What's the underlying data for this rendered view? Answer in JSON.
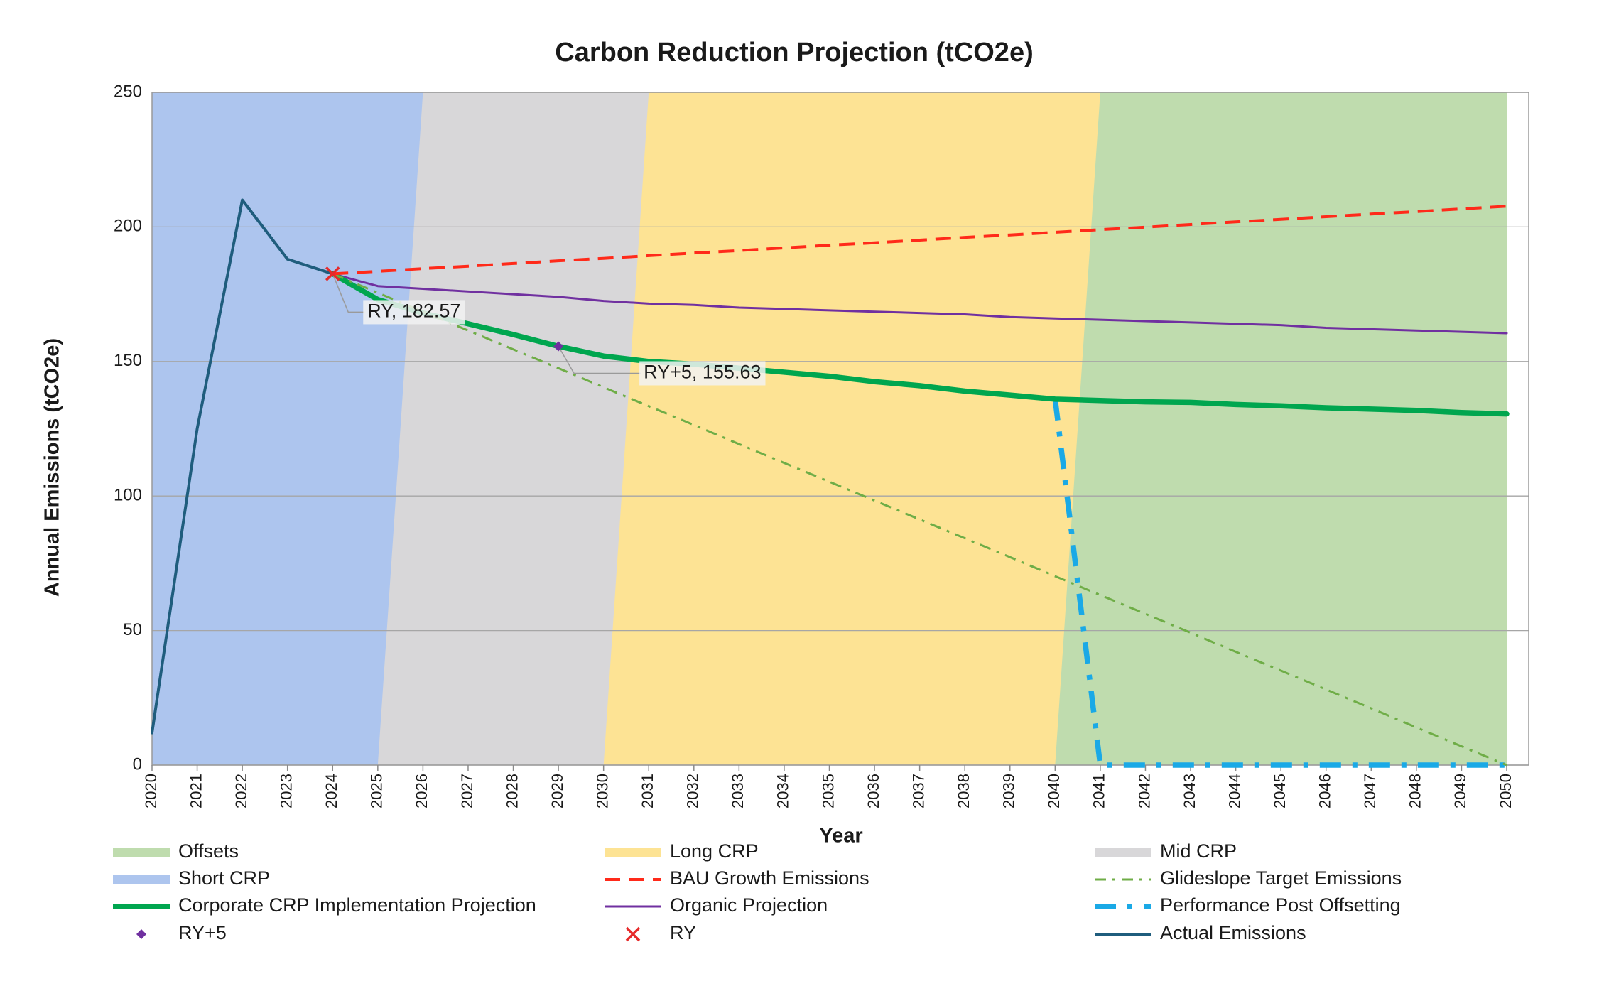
{
  "chart_data": {
    "type": "combo",
    "title": "Carbon Reduction Projection (tCO2e)",
    "x_label": "Year",
    "y_label": "Annual Emissions (tCO2e)",
    "x": [
      2020,
      2021,
      2022,
      2023,
      2024,
      2025,
      2026,
      2027,
      2028,
      2029,
      2030,
      2031,
      2032,
      2033,
      2034,
      2035,
      2036,
      2037,
      2038,
      2039,
      2040,
      2041,
      2042,
      2043,
      2044,
      2045,
      2046,
      2047,
      2048,
      2049,
      2050
    ],
    "xlim": [
      2020,
      2050
    ],
    "xticks": [
      2020,
      2021,
      2022,
      2023,
      2024,
      2025,
      2026,
      2027,
      2028,
      2029,
      2030,
      2031,
      2032,
      2033,
      2034,
      2035,
      2036,
      2037,
      2038,
      2039,
      2040,
      2041,
      2042,
      2043,
      2044,
      2045,
      2046,
      2047,
      2048,
      2049,
      2050
    ],
    "ylim": [
      0,
      250
    ],
    "yticks": [
      0,
      50,
      100,
      150,
      200,
      250
    ],
    "grid": true,
    "legend": "bottom",
    "series": [
      {
        "name": "Offsets",
        "type": "area",
        "color": "#bfdcae",
        "values": [
          0,
          0,
          0,
          0,
          0,
          0,
          0,
          0,
          0,
          0,
          0,
          0,
          0,
          0,
          0,
          0,
          0,
          0,
          0,
          0,
          0,
          250,
          250,
          250,
          250,
          250,
          250,
          250,
          250,
          250,
          250
        ]
      },
      {
        "name": "Long CRP",
        "type": "area",
        "color": "#fde394",
        "values": [
          0,
          0,
          0,
          0,
          0,
          0,
          0,
          0,
          0,
          0,
          0,
          250,
          250,
          250,
          250,
          250,
          250,
          250,
          250,
          250,
          250,
          250,
          0,
          0,
          0,
          0,
          0,
          0,
          0,
          0,
          0
        ]
      },
      {
        "name": "Mid CRP",
        "type": "area",
        "color": "#d8d7d9",
        "values": [
          0,
          0,
          0,
          0,
          0,
          0,
          250,
          250,
          250,
          250,
          250,
          250,
          0,
          0,
          0,
          0,
          0,
          0,
          0,
          0,
          0,
          0,
          0,
          0,
          0,
          0,
          0,
          0,
          0,
          0,
          0
        ]
      },
      {
        "name": "Short CRP",
        "type": "area",
        "color": "#adc5ee",
        "values": [
          250,
          250,
          250,
          250,
          250,
          250,
          250,
          0,
          0,
          0,
          0,
          0,
          0,
          0,
          0,
          0,
          0,
          0,
          0,
          0,
          0,
          0,
          0,
          0,
          0,
          0,
          0,
          0,
          0,
          0,
          0
        ]
      },
      {
        "name": "BAU Growth Emissions",
        "type": "line",
        "color": "#ff2a1a",
        "line_style": "dashed",
        "line_width": "medium",
        "values": [
          null,
          null,
          null,
          null,
          182.57,
          183.5,
          184.5,
          185.4,
          186.4,
          187.4,
          188.3,
          189.3,
          190.3,
          191.2,
          192.2,
          193.2,
          194.1,
          195.1,
          196.1,
          197.0,
          198.0,
          199.0,
          199.9,
          200.9,
          201.9,
          202.8,
          203.8,
          204.8,
          205.7,
          206.7,
          207.7
        ]
      },
      {
        "name": "Glideslope Target Emissions",
        "type": "line",
        "color": "#6fad47",
        "line_style": "dashdot",
        "line_width": "thin",
        "values": [
          null,
          null,
          null,
          null,
          182.57,
          175.5,
          168.5,
          161.5,
          154.5,
          147.5,
          140.4,
          133.4,
          126.4,
          119.3,
          112.3,
          105.3,
          98.3,
          91.3,
          84.3,
          77.3,
          70.2,
          63.2,
          56.2,
          49.2,
          42.1,
          35.1,
          28.1,
          21.1,
          14,
          7,
          0
        ]
      },
      {
        "name": "Corporate CRP Implementation Projection",
        "type": "line",
        "color": "#00a64f",
        "line_style": "solid",
        "line_width": "thick",
        "values": [
          null,
          null,
          null,
          null,
          182.57,
          173,
          168,
          164,
          160,
          155.63,
          152,
          150,
          149,
          147.5,
          146,
          144.5,
          142.5,
          141,
          139,
          137.5,
          136,
          135.5,
          135,
          134.8,
          134,
          133.5,
          132.8,
          132.3,
          131.8,
          131,
          130.5
        ]
      },
      {
        "name": "Organic Projection",
        "type": "line",
        "color": "#7030a0",
        "line_style": "solid",
        "line_width": "thin",
        "values": [
          null,
          null,
          null,
          null,
          182.57,
          178,
          177,
          176,
          175,
          174,
          172.5,
          171.5,
          171,
          170,
          169.5,
          169,
          168.5,
          168,
          167.5,
          166.5,
          166,
          165.5,
          165,
          164.5,
          164,
          163.5,
          162.5,
          162,
          161.5,
          161,
          160.5
        ]
      },
      {
        "name": "Performance Post Offsetting",
        "type": "line",
        "color": "#1aa9e6",
        "line_style": "dashdot",
        "line_width": "thick",
        "values": [
          null,
          null,
          null,
          null,
          null,
          null,
          null,
          null,
          null,
          null,
          null,
          null,
          null,
          null,
          null,
          null,
          null,
          null,
          null,
          null,
          136,
          0,
          0,
          0,
          0,
          0,
          0,
          0,
          0,
          0,
          0
        ]
      },
      {
        "name": "RY+5",
        "type": "scatter",
        "marker": "diamond",
        "color": "#7030a0",
        "values": [
          null,
          null,
          null,
          null,
          null,
          null,
          null,
          null,
          null,
          155.63,
          null,
          null,
          null,
          null,
          null,
          null,
          null,
          null,
          null,
          null,
          null,
          null,
          null,
          null,
          null,
          null,
          null,
          null,
          null,
          null,
          null
        ],
        "value_labels": [
          null,
          null,
          null,
          null,
          null,
          null,
          null,
          null,
          null,
          "RY+5, 155.63",
          null,
          null,
          null,
          null,
          null,
          null,
          null,
          null,
          null,
          null,
          null,
          null,
          null,
          null,
          null,
          null,
          null,
          null,
          null,
          null,
          null
        ]
      },
      {
        "name": "RY",
        "type": "scatter",
        "marker": "x",
        "color": "#e62a2a",
        "values": [
          null,
          null,
          null,
          null,
          182.57,
          null,
          null,
          null,
          null,
          null,
          null,
          null,
          null,
          null,
          null,
          null,
          null,
          null,
          null,
          null,
          null,
          null,
          null,
          null,
          null,
          null,
          null,
          null,
          null,
          null,
          null
        ],
        "value_labels": [
          null,
          null,
          null,
          null,
          "RY, 182.57",
          null,
          null,
          null,
          null,
          null,
          null,
          null,
          null,
          null,
          null,
          null,
          null,
          null,
          null,
          null,
          null,
          null,
          null,
          null,
          null,
          null,
          null,
          null,
          null,
          null,
          null
        ]
      },
      {
        "name": "Actual Emissions",
        "type": "line",
        "color": "#1f5d7d",
        "line_style": "solid",
        "line_width": "medium",
        "values": [
          12,
          125,
          210,
          188,
          182.57,
          null,
          null,
          null,
          null,
          null,
          null,
          null,
          null,
          null,
          null,
          null,
          null,
          null,
          null,
          null,
          null,
          null,
          null,
          null,
          null,
          null,
          null,
          null,
          null,
          null,
          null
        ]
      }
    ]
  }
}
